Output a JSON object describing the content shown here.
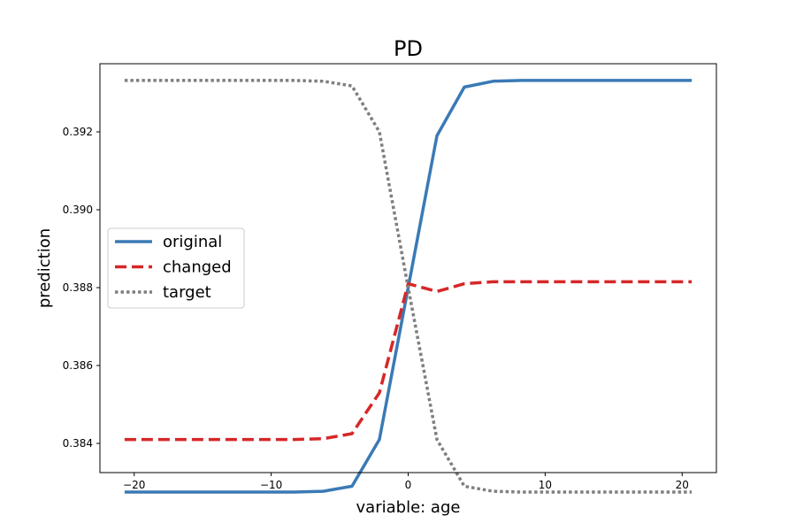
{
  "chart_data": {
    "type": "line",
    "title": "PD",
    "xlabel": "variable: age",
    "ylabel": "prediction",
    "xlim": [
      -22.5,
      22.5
    ],
    "ylim": [
      0.38325,
      0.39375
    ],
    "xticks": [
      -20,
      -10,
      0,
      10,
      20
    ],
    "xtick_labels": [
      "−20",
      "−10",
      "0",
      "10",
      "20"
    ],
    "yticks": [
      0.384,
      0.386,
      0.388,
      0.39,
      0.392
    ],
    "ytick_labels": [
      "0.384",
      "0.386",
      "0.388",
      "0.390",
      "0.392"
    ],
    "grid": false,
    "legend_position": "center-left",
    "x": [
      -20.7,
      -18.7,
      -16.6,
      -14.5,
      -12.4,
      -10.4,
      -8.3,
      -6.2,
      -4.1,
      -2.1,
      0.0,
      2.1,
      4.1,
      6.2,
      8.3,
      10.4,
      12.4,
      14.5,
      16.6,
      18.7,
      20.7
    ],
    "series": [
      {
        "name": "original",
        "color": "#3a7ab5",
        "dash": "solid",
        "values": [
          0.38275,
          0.38275,
          0.38275,
          0.38275,
          0.38275,
          0.38275,
          0.38275,
          0.38277,
          0.3829,
          0.3841,
          0.388,
          0.3919,
          0.39315,
          0.3933,
          0.39332,
          0.39332,
          0.39332,
          0.39332,
          0.39332,
          0.39332,
          0.39332
        ]
      },
      {
        "name": "changed",
        "color": "#d62728",
        "dash": "dashed",
        "values": [
          0.3841,
          0.3841,
          0.3841,
          0.3841,
          0.3841,
          0.3841,
          0.3841,
          0.38412,
          0.38425,
          0.3853,
          0.3881,
          0.3879,
          0.3881,
          0.38815,
          0.38815,
          0.38815,
          0.38815,
          0.38815,
          0.38815,
          0.38815,
          0.38815
        ]
      },
      {
        "name": "target",
        "color": "#7f7f7f",
        "dash": "dotted",
        "values": [
          0.39332,
          0.39332,
          0.39332,
          0.39332,
          0.39332,
          0.39332,
          0.39332,
          0.3933,
          0.39318,
          0.392,
          0.388,
          0.3841,
          0.3829,
          0.38277,
          0.38275,
          0.38275,
          0.38275,
          0.38275,
          0.38275,
          0.38275,
          0.38275
        ]
      }
    ]
  }
}
